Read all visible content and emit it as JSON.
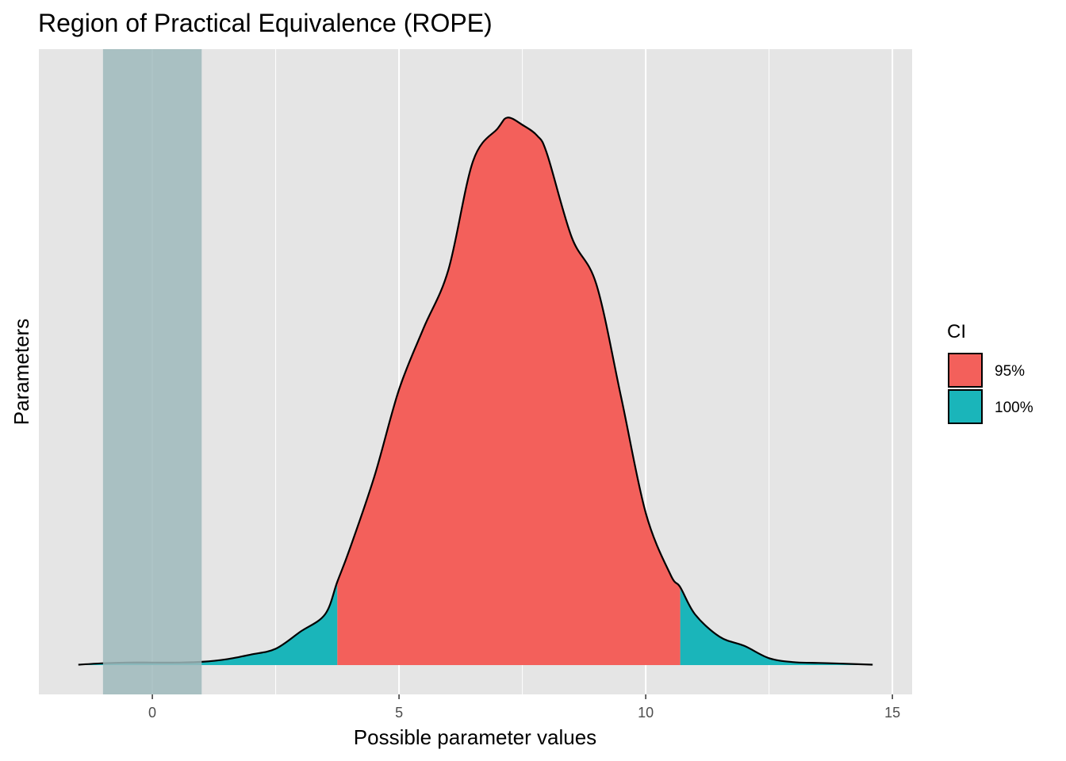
{
  "chart_data": {
    "type": "area",
    "title": "Region of Practical Equivalence (ROPE)",
    "xlabel": "Possible parameter values",
    "ylabel": "Parameters",
    "xlim": [
      -2.3,
      15.4
    ],
    "x_ticks": [
      0,
      5,
      10,
      15
    ],
    "x_tick_labels": [
      "0",
      "5",
      "10",
      "15"
    ],
    "grid": true,
    "rope": {
      "range": [
        -1,
        1
      ],
      "color": "#9fbabc"
    },
    "ci": {
      "95%": [
        3.75,
        10.7
      ],
      "100%": [
        -1.5,
        14.6
      ]
    },
    "density_x": [
      -1.5,
      -1.0,
      -0.5,
      0.0,
      0.5,
      1.0,
      1.5,
      2.0,
      2.5,
      3.0,
      3.5,
      3.75,
      4.0,
      4.5,
      5.0,
      5.5,
      6.0,
      6.5,
      7.0,
      7.2,
      7.5,
      7.8,
      8.0,
      8.5,
      9.0,
      9.5,
      10.0,
      10.5,
      10.7,
      11.0,
      11.5,
      12.0,
      12.5,
      13.0,
      13.5,
      14.0,
      14.6
    ],
    "density_y": [
      0.001,
      0.005,
      0.007,
      0.007,
      0.007,
      0.009,
      0.016,
      0.029,
      0.045,
      0.092,
      0.14,
      0.23,
      0.32,
      0.52,
      0.76,
      0.93,
      1.09,
      1.39,
      1.48,
      1.51,
      1.49,
      1.46,
      1.41,
      1.18,
      1.05,
      0.74,
      0.42,
      0.25,
      0.215,
      0.14,
      0.078,
      0.053,
      0.019,
      0.008,
      0.006,
      0.004,
      0.001
    ],
    "y_max": 1.62,
    "legend": {
      "title": "CI",
      "position": "right",
      "entries": [
        {
          "label": "95%",
          "color": "#f3605b"
        },
        {
          "label": "100%",
          "color": "#1ab5ba"
        }
      ]
    },
    "panel_color": "#e5e5e5",
    "gridline_color": "#ffffff"
  }
}
